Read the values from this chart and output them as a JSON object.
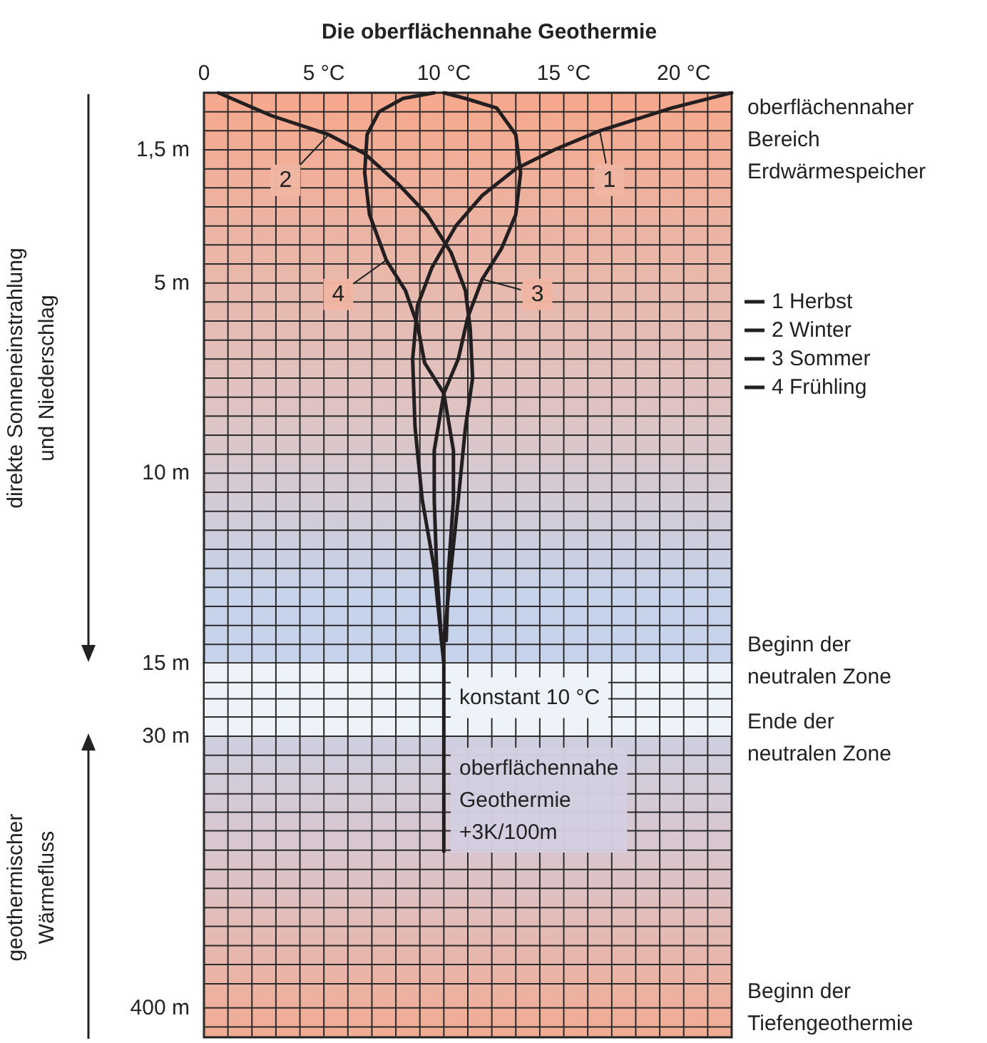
{
  "chart_data": [
    {
      "type": "line",
      "title": "Die oberflächennahe Geothermie",
      "xlim": [
        0,
        22
      ],
      "xticks": [
        0,
        {
          "value": 1,
          "label": null
        },
        {
          "value": 2,
          "label": null
        },
        {
          "value": 3,
          "label": null
        },
        {
          "value": 4,
          "label": null
        },
        {
          "value": 5,
          "label": "5 °C"
        },
        {
          "value": 6,
          "label": null
        },
        {
          "value": 7,
          "label": null
        },
        {
          "value": 8,
          "label": null
        },
        {
          "value": 9,
          "label": null
        },
        {
          "value": 10,
          "label": "10 °C"
        },
        {
          "value": 11,
          "label": null
        },
        {
          "value": 12,
          "label": null
        },
        {
          "value": 13,
          "label": null
        },
        {
          "value": 14,
          "label": null
        },
        {
          "value": 15,
          "label": "15 °C"
        },
        {
          "value": 16,
          "label": null
        },
        {
          "value": 17,
          "label": null
        },
        {
          "value": 18,
          "label": null
        },
        {
          "value": 19,
          "label": null
        },
        {
          "value": 20,
          "label": "20 °C"
        },
        {
          "value": 21,
          "label": null
        },
        {
          "value": 22,
          "label": null
        }
      ],
      "ylim": [
        15,
        0
      ],
      "yticks": [
        {
          "value": 0.5,
          "label": null
        },
        {
          "value": 1,
          "label": null
        },
        {
          "value": 1.5,
          "label": "1,5 m"
        },
        {
          "value": 2,
          "label": null
        },
        {
          "value": 2.5,
          "label": null
        },
        {
          "value": 3,
          "label": null
        },
        {
          "value": 3.5,
          "label": null
        },
        {
          "value": 4,
          "label": null
        },
        {
          "value": 4.5,
          "label": null
        },
        {
          "value": 5,
          "label": "5 m"
        },
        {
          "value": 5.5,
          "label": null
        },
        {
          "value": 6,
          "label": null
        },
        {
          "value": 6.5,
          "label": null
        },
        {
          "value": 7,
          "label": null
        },
        {
          "value": 7.5,
          "label": null
        },
        {
          "value": 8,
          "label": null
        },
        {
          "value": 8.5,
          "label": null
        },
        {
          "value": 9,
          "label": null
        },
        {
          "value": 9.5,
          "label": null
        },
        {
          "value": 10,
          "label": "10 m"
        },
        {
          "value": 10.5,
          "label": null
        },
        {
          "value": 11,
          "label": null
        },
        {
          "value": 11.5,
          "label": null
        },
        {
          "value": 12,
          "label": null
        },
        {
          "value": 12.5,
          "label": null
        },
        {
          "value": 13,
          "label": null
        },
        {
          "value": 13.5,
          "label": null
        },
        {
          "value": 14,
          "label": null
        },
        {
          "value": 14.5,
          "label": null
        },
        {
          "value": 15,
          "label": "15 m"
        }
      ],
      "grid": true,
      "marker": "none",
      "legend": "right",
      "series": [
        {
          "name": "1 Herbst",
          "color": "#231f20",
          "x": [
            22,
            19.5,
            16.5,
            14.6,
            13.0,
            11.6,
            10.5,
            9.5,
            8.9,
            8.7,
            8.8,
            9.1,
            9.6,
            9.9,
            10
          ],
          "values": [
            0,
            0.4,
            1.0,
            1.5,
            2.0,
            2.7,
            3.5,
            4.6,
            5.6,
            7.0,
            8.8,
            10.7,
            12.5,
            14.4,
            15
          ]
        },
        {
          "name": "2 Winter",
          "color": "#231f20",
          "x": [
            0.6,
            2.8,
            5.2,
            6.7,
            8.1,
            9.3,
            10.3,
            10.9,
            11.1,
            11.2,
            10.9,
            10.6,
            10.3,
            10.0,
            10
          ],
          "values": [
            0,
            0.6,
            1.1,
            1.6,
            2.4,
            3.2,
            4.2,
            5.2,
            6.2,
            7.5,
            8.8,
            10.7,
            12.5,
            14.4,
            15
          ]
        },
        {
          "name": "3 Sommer",
          "color": "#231f20",
          "x": [
            10.0,
            10.9,
            12.2,
            13.0,
            13.2,
            13.0,
            12.4,
            11.6,
            11.0,
            10.6,
            10.0,
            9.6,
            9.6,
            9.7,
            9.9
          ],
          "values": [
            0,
            0.15,
            0.4,
            1.1,
            2.1,
            3.2,
            4.1,
            4.9,
            5.9,
            7.0,
            7.9,
            9.4,
            10.7,
            12.5,
            14.4
          ]
        },
        {
          "name": "4 Frühling",
          "color": "#231f20",
          "x": [
            9.6,
            8.3,
            7.3,
            6.8,
            6.7,
            6.9,
            7.6,
            8.4,
            8.9,
            9.2,
            10.0,
            10.4,
            10.4,
            10.2,
            10.1
          ],
          "values": [
            0,
            0.15,
            0.5,
            1.1,
            2.1,
            3.2,
            4.4,
            5.2,
            6.1,
            7.1,
            7.9,
            9.4,
            10.7,
            12.5,
            14.4
          ]
        }
      ],
      "annotations": [
        "direkte Sonneneinstrahlung und Niederschlag",
        "oberflächennaher Bereich Erdwärmespeicher",
        {
          "text": "1",
          "x": 16.9,
          "y": 2.3
        },
        {
          "text": "2",
          "x": 3.4,
          "y": 2.3
        },
        {
          "text": "3",
          "x": 13.9,
          "y": 5.3
        },
        {
          "text": "4",
          "x": 5.6,
          "y": 5.3
        }
      ]
    },
    {
      "type": "line",
      "xlim": [
        0,
        22
      ],
      "xticks": [
        {
          "value": 0,
          "label": null
        },
        {
          "value": 1,
          "label": null
        },
        {
          "value": 2,
          "label": null
        },
        {
          "value": 3,
          "label": null
        },
        {
          "value": 4,
          "label": null
        },
        {
          "value": 5,
          "label": null
        },
        {
          "value": 6,
          "label": null
        },
        {
          "value": 7,
          "label": null
        },
        {
          "value": 8,
          "label": null
        },
        {
          "value": 9,
          "label": null
        },
        {
          "value": 10,
          "label": null
        },
        {
          "value": 11,
          "label": null
        },
        {
          "value": 12,
          "label": null
        },
        {
          "value": 13,
          "label": null
        },
        {
          "value": 14,
          "label": null
        },
        {
          "value": 15,
          "label": null
        },
        {
          "value": 16,
          "label": null
        },
        {
          "value": 17,
          "label": null
        },
        {
          "value": 18,
          "label": null
        },
        {
          "value": 19,
          "label": null
        },
        {
          "value": 20,
          "label": null
        },
        {
          "value": 21,
          "label": null
        },
        {
          "value": 22,
          "label": null
        }
      ],
      "ylim": [
        530,
        15
      ],
      "log": "y",
      "yticks": [
        {
          "value": 18,
          "label": null
        },
        {
          "value": 21,
          "label": null
        },
        {
          "value": 25,
          "label": null
        },
        {
          "value": 30,
          "label": "30 m"
        },
        {
          "value": 36,
          "label": null
        },
        {
          "value": 43,
          "label": null
        },
        {
          "value": 52,
          "label": null
        },
        {
          "value": 62,
          "label": null
        },
        {
          "value": 74,
          "label": null
        },
        {
          "value": 89,
          "label": null
        },
        {
          "value": 107,
          "label": null
        },
        {
          "value": 128,
          "label": null
        },
        {
          "value": 154,
          "label": null
        },
        {
          "value": 184,
          "label": null
        },
        {
          "value": 221,
          "label": null
        },
        {
          "value": 265,
          "label": null
        },
        {
          "value": 318,
          "label": null
        },
        {
          "value": 400,
          "label": "400 m"
        },
        {
          "value": 480,
          "label": null
        }
      ],
      "tick_labels": "y",
      "grid": true,
      "marker": "none",
      "bands": [
        {
          "axis": "y",
          "from": 15,
          "to": 30,
          "color": "#eef3fa"
        }
      ],
      "series": [
        {
          "color": "#231f20",
          "x": [
            10,
            10
          ],
          "values": [
            15,
            90
          ]
        }
      ],
      "annotations": [
        "geothermischer Wärmefluss",
        "Beginn der neutralen Zone",
        "Ende der neutralen Zone",
        "Beginn der Tiefengeothermie",
        "konstant 10 °C",
        "oberflächennahe Geothermie +3K/100m"
      ]
    }
  ]
}
